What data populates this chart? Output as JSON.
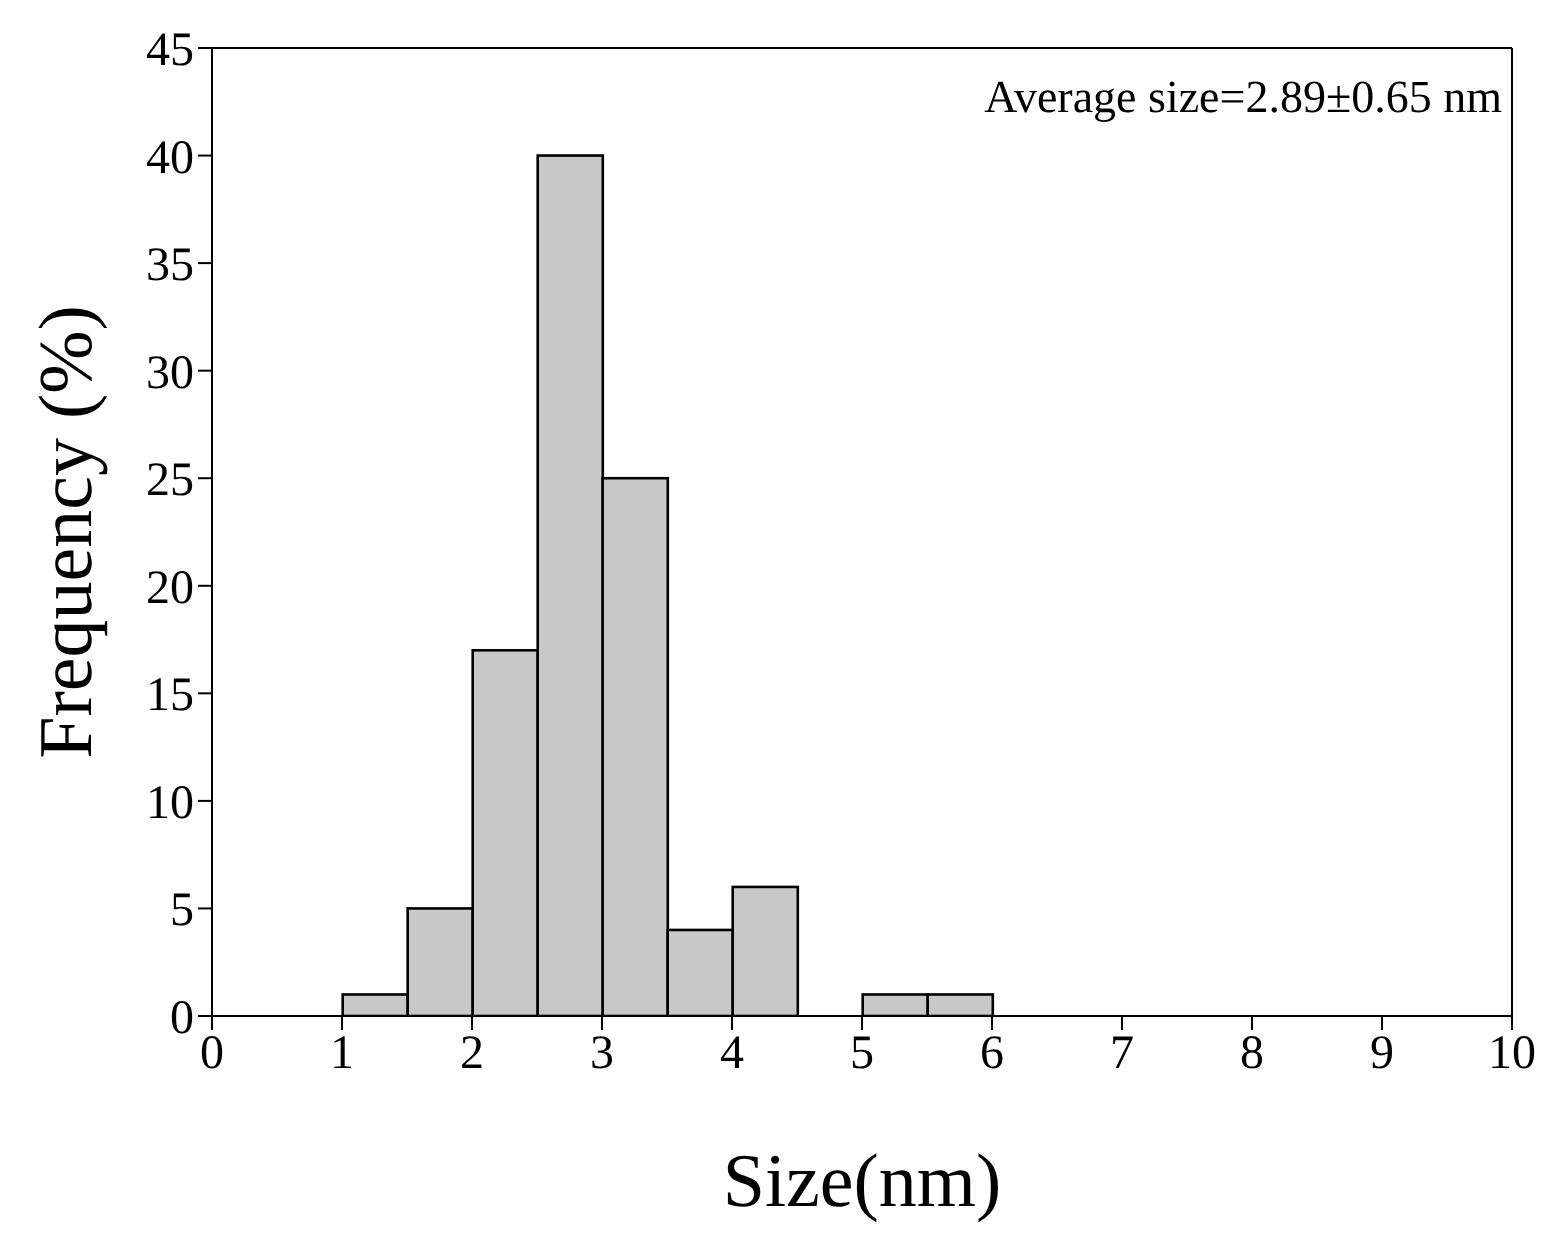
{
  "chart_data": {
    "type": "histogram",
    "xlabel": "Size(nm)",
    "ylabel": "Frequency (%)",
    "bins": [
      1,
      1.5,
      2,
      2.5,
      3,
      3.5,
      4,
      4.5,
      5,
      5.5,
      6
    ],
    "values": [
      1,
      5,
      17,
      40,
      25,
      4,
      6,
      0,
      1,
      1
    ],
    "color": "#c8c8c8",
    "xlim": [
      0,
      10
    ],
    "xticks": [
      0,
      1,
      2,
      3,
      4,
      5,
      6,
      7,
      8,
      9,
      10
    ],
    "ylim": [
      0,
      45
    ],
    "yticks": [
      0,
      5,
      10,
      15,
      20,
      25,
      30,
      35,
      40,
      45
    ],
    "grid": false,
    "annotations": [
      "Average size=2.89±0.65 nm"
    ]
  }
}
